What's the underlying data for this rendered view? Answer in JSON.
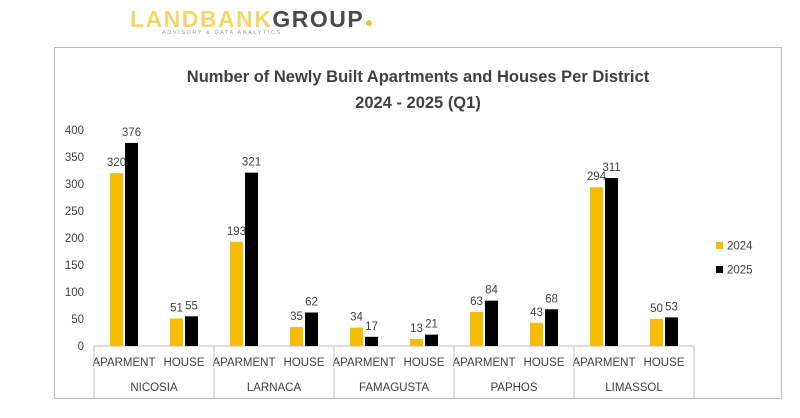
{
  "logo": {
    "brand_part1": "LANDBANK",
    "brand_part2": "GROUP",
    "tagline": "ADVISORY & DATA ANALYTICS"
  },
  "colors": {
    "series_2024": "#f5bc00",
    "series_2025": "#000000",
    "axis": "#bfbfbf",
    "text": "#404040"
  },
  "chart_data": {
    "type": "bar",
    "title": "Number of Newly Built Apartments and Houses Per District",
    "subtitle": "2024 - 2025 (Q1)",
    "ylim": [
      0,
      400
    ],
    "yticks": [
      0,
      50,
      100,
      150,
      200,
      250,
      300,
      350,
      400
    ],
    "grid": false,
    "legend_position": "right",
    "groups": [
      "NICOSIA",
      "LARNACA",
      "FAMAGUSTA",
      "PAPHOS",
      "LIMASSOL"
    ],
    "categories": [
      "APARMENT",
      "HOUSE",
      "APARMENT",
      "HOUSE",
      "APARMENT",
      "HOUSE",
      "APARMENT",
      "HOUSE",
      "APARMENT",
      "HOUSE"
    ],
    "series": [
      {
        "name": "2024",
        "values": [
          320,
          51,
          193,
          35,
          34,
          13,
          63,
          43,
          294,
          50
        ]
      },
      {
        "name": "2025",
        "values": [
          376,
          55,
          321,
          62,
          17,
          21,
          84,
          68,
          311,
          53
        ]
      }
    ]
  }
}
